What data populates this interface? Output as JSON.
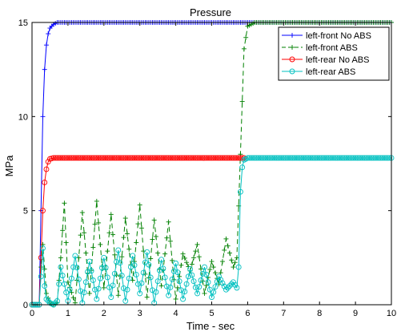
{
  "chart_data": {
    "type": "line",
    "title": "Pressure",
    "xlabel": "Time - sec",
    "ylabel": "MPa",
    "xlim": [
      0,
      10
    ],
    "ylim": [
      0,
      15
    ],
    "xticks": [
      0,
      1,
      2,
      3,
      4,
      5,
      6,
      7,
      8,
      9,
      10
    ],
    "yticks": [
      0,
      5,
      10,
      15
    ],
    "grid": false,
    "legend_position": "top-right",
    "series": [
      {
        "name": "left-front No ABS",
        "color": "#0000ff",
        "linestyle": "solid",
        "marker": "plus",
        "x": [
          0,
          0.2,
          0.25,
          0.3,
          0.35,
          0.4,
          0.45,
          0.5,
          0.6,
          0.7,
          0.8,
          1.0,
          2.0,
          4.0,
          6.0,
          8.0,
          10.0
        ],
        "y": [
          0,
          0,
          5.0,
          10.0,
          12.5,
          13.8,
          14.4,
          14.7,
          14.9,
          15.0,
          15.0,
          15.0,
          15.0,
          15.0,
          15.0,
          15.0,
          15.0
        ]
      },
      {
        "name": "left-front ABS",
        "color": "#008000",
        "linestyle": "dashed",
        "marker": "plus",
        "x": [
          0,
          0.2,
          0.25,
          0.3,
          0.4,
          0.5,
          0.6,
          0.7,
          0.8,
          0.9,
          1.0,
          1.2,
          1.4,
          1.6,
          1.8,
          2.0,
          2.2,
          2.4,
          2.6,
          2.8,
          3.0,
          3.2,
          3.4,
          3.6,
          3.8,
          4.0,
          4.2,
          4.4,
          4.6,
          4.8,
          5.0,
          5.2,
          5.4,
          5.6,
          5.7,
          5.8,
          5.9,
          6.0,
          6.2,
          8.0,
          10.0
        ],
        "y": [
          0,
          0,
          2.0,
          3.2,
          0.6,
          0.1,
          0.0,
          0.1,
          2.5,
          5.4,
          1.2,
          0.1,
          4.9,
          0.6,
          5.5,
          0.9,
          4.8,
          0.5,
          4.6,
          1.3,
          5.3,
          0.4,
          4.5,
          1.0,
          4.4,
          0.3,
          2.7,
          1.8,
          3.2,
          0.6,
          2.3,
          1.1,
          3.5,
          2.0,
          2.5,
          8.0,
          13.6,
          14.8,
          15.0,
          15.0,
          15.0
        ]
      },
      {
        "name": "left-rear No ABS",
        "color": "#ff0000",
        "linestyle": "solid",
        "marker": "circle",
        "x": [
          0,
          0.2,
          0.25,
          0.3,
          0.35,
          0.4,
          0.45,
          0.5,
          0.6,
          0.8,
          1.0,
          2.0,
          4.0,
          5.9
        ],
        "y": [
          0,
          0,
          2.5,
          5.0,
          6.5,
          7.2,
          7.6,
          7.75,
          7.8,
          7.8,
          7.8,
          7.8,
          7.8,
          7.8
        ]
      },
      {
        "name": "left-rear ABS",
        "color": "#00c0c0",
        "linestyle": "solid",
        "marker": "circle",
        "x": [
          0,
          0.2,
          0.25,
          0.3,
          0.35,
          0.4,
          0.5,
          0.6,
          0.7,
          0.8,
          1.0,
          1.2,
          1.4,
          1.6,
          1.8,
          2.0,
          2.2,
          2.4,
          2.6,
          2.8,
          3.0,
          3.2,
          3.4,
          3.6,
          3.8,
          4.0,
          4.2,
          4.4,
          4.6,
          4.8,
          5.0,
          5.2,
          5.4,
          5.6,
          5.7,
          5.75,
          5.8,
          5.85,
          5.9,
          6.0,
          6.2,
          8.0,
          10.0
        ],
        "y": [
          0,
          0,
          1.5,
          3.0,
          1.0,
          0.3,
          0.1,
          0.0,
          0.2,
          2.0,
          0.2,
          2.6,
          0.1,
          2.3,
          0.3,
          2.5,
          0.4,
          2.9,
          0.2,
          2.6,
          0.6,
          2.8,
          0.1,
          2.4,
          0.5,
          2.2,
          0.3,
          1.9,
          0.6,
          2.0,
          0.4,
          1.5,
          0.8,
          1.2,
          0.9,
          2.0,
          6.0,
          7.3,
          7.7,
          7.8,
          7.8,
          7.8,
          7.8
        ]
      }
    ]
  }
}
